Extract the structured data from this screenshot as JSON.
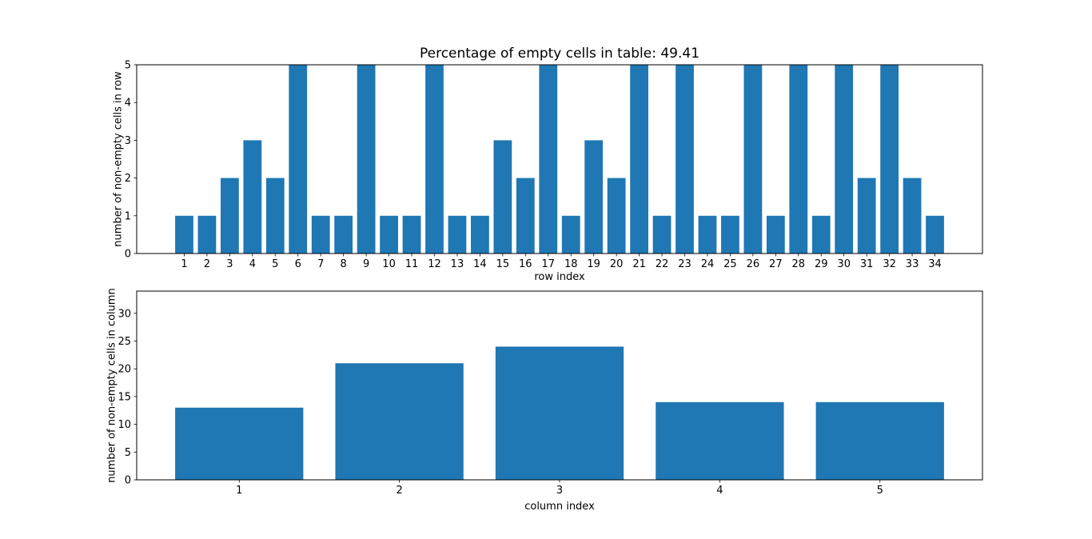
{
  "colors": {
    "bar": "#1f77b4",
    "axis": "#000000",
    "background": "#ffffff"
  },
  "chart_data": [
    {
      "type": "bar",
      "title": "Percentage of empty cells in table: 49.41",
      "xlabel": "row index",
      "ylabel": "number of non-empty cells in row",
      "categories": [
        "1",
        "2",
        "3",
        "4",
        "5",
        "6",
        "7",
        "8",
        "9",
        "10",
        "11",
        "12",
        "13",
        "14",
        "15",
        "16",
        "17",
        "18",
        "19",
        "20",
        "21",
        "22",
        "23",
        "24",
        "25",
        "26",
        "27",
        "28",
        "29",
        "30",
        "31",
        "32",
        "33",
        "34"
      ],
      "values": [
        1,
        1,
        2,
        3,
        2,
        5,
        1,
        1,
        5,
        1,
        1,
        5,
        1,
        1,
        3,
        2,
        5,
        1,
        3,
        2,
        5,
        1,
        5,
        1,
        1,
        5,
        1,
        5,
        1,
        5,
        2,
        5,
        2,
        1
      ],
      "ylim": [
        0,
        5
      ],
      "yticks": [
        0,
        1,
        2,
        3,
        4,
        5
      ],
      "grid": false,
      "legend_position": "none"
    },
    {
      "type": "bar",
      "title": "",
      "xlabel": "column index",
      "ylabel": "number of non-empty cells in column",
      "categories": [
        "1",
        "2",
        "3",
        "4",
        "5"
      ],
      "values": [
        13,
        21,
        24,
        14,
        14
      ],
      "ylim": [
        0,
        34
      ],
      "yticks": [
        0,
        5,
        10,
        15,
        20,
        25,
        30
      ],
      "grid": false,
      "legend_position": "none"
    }
  ]
}
